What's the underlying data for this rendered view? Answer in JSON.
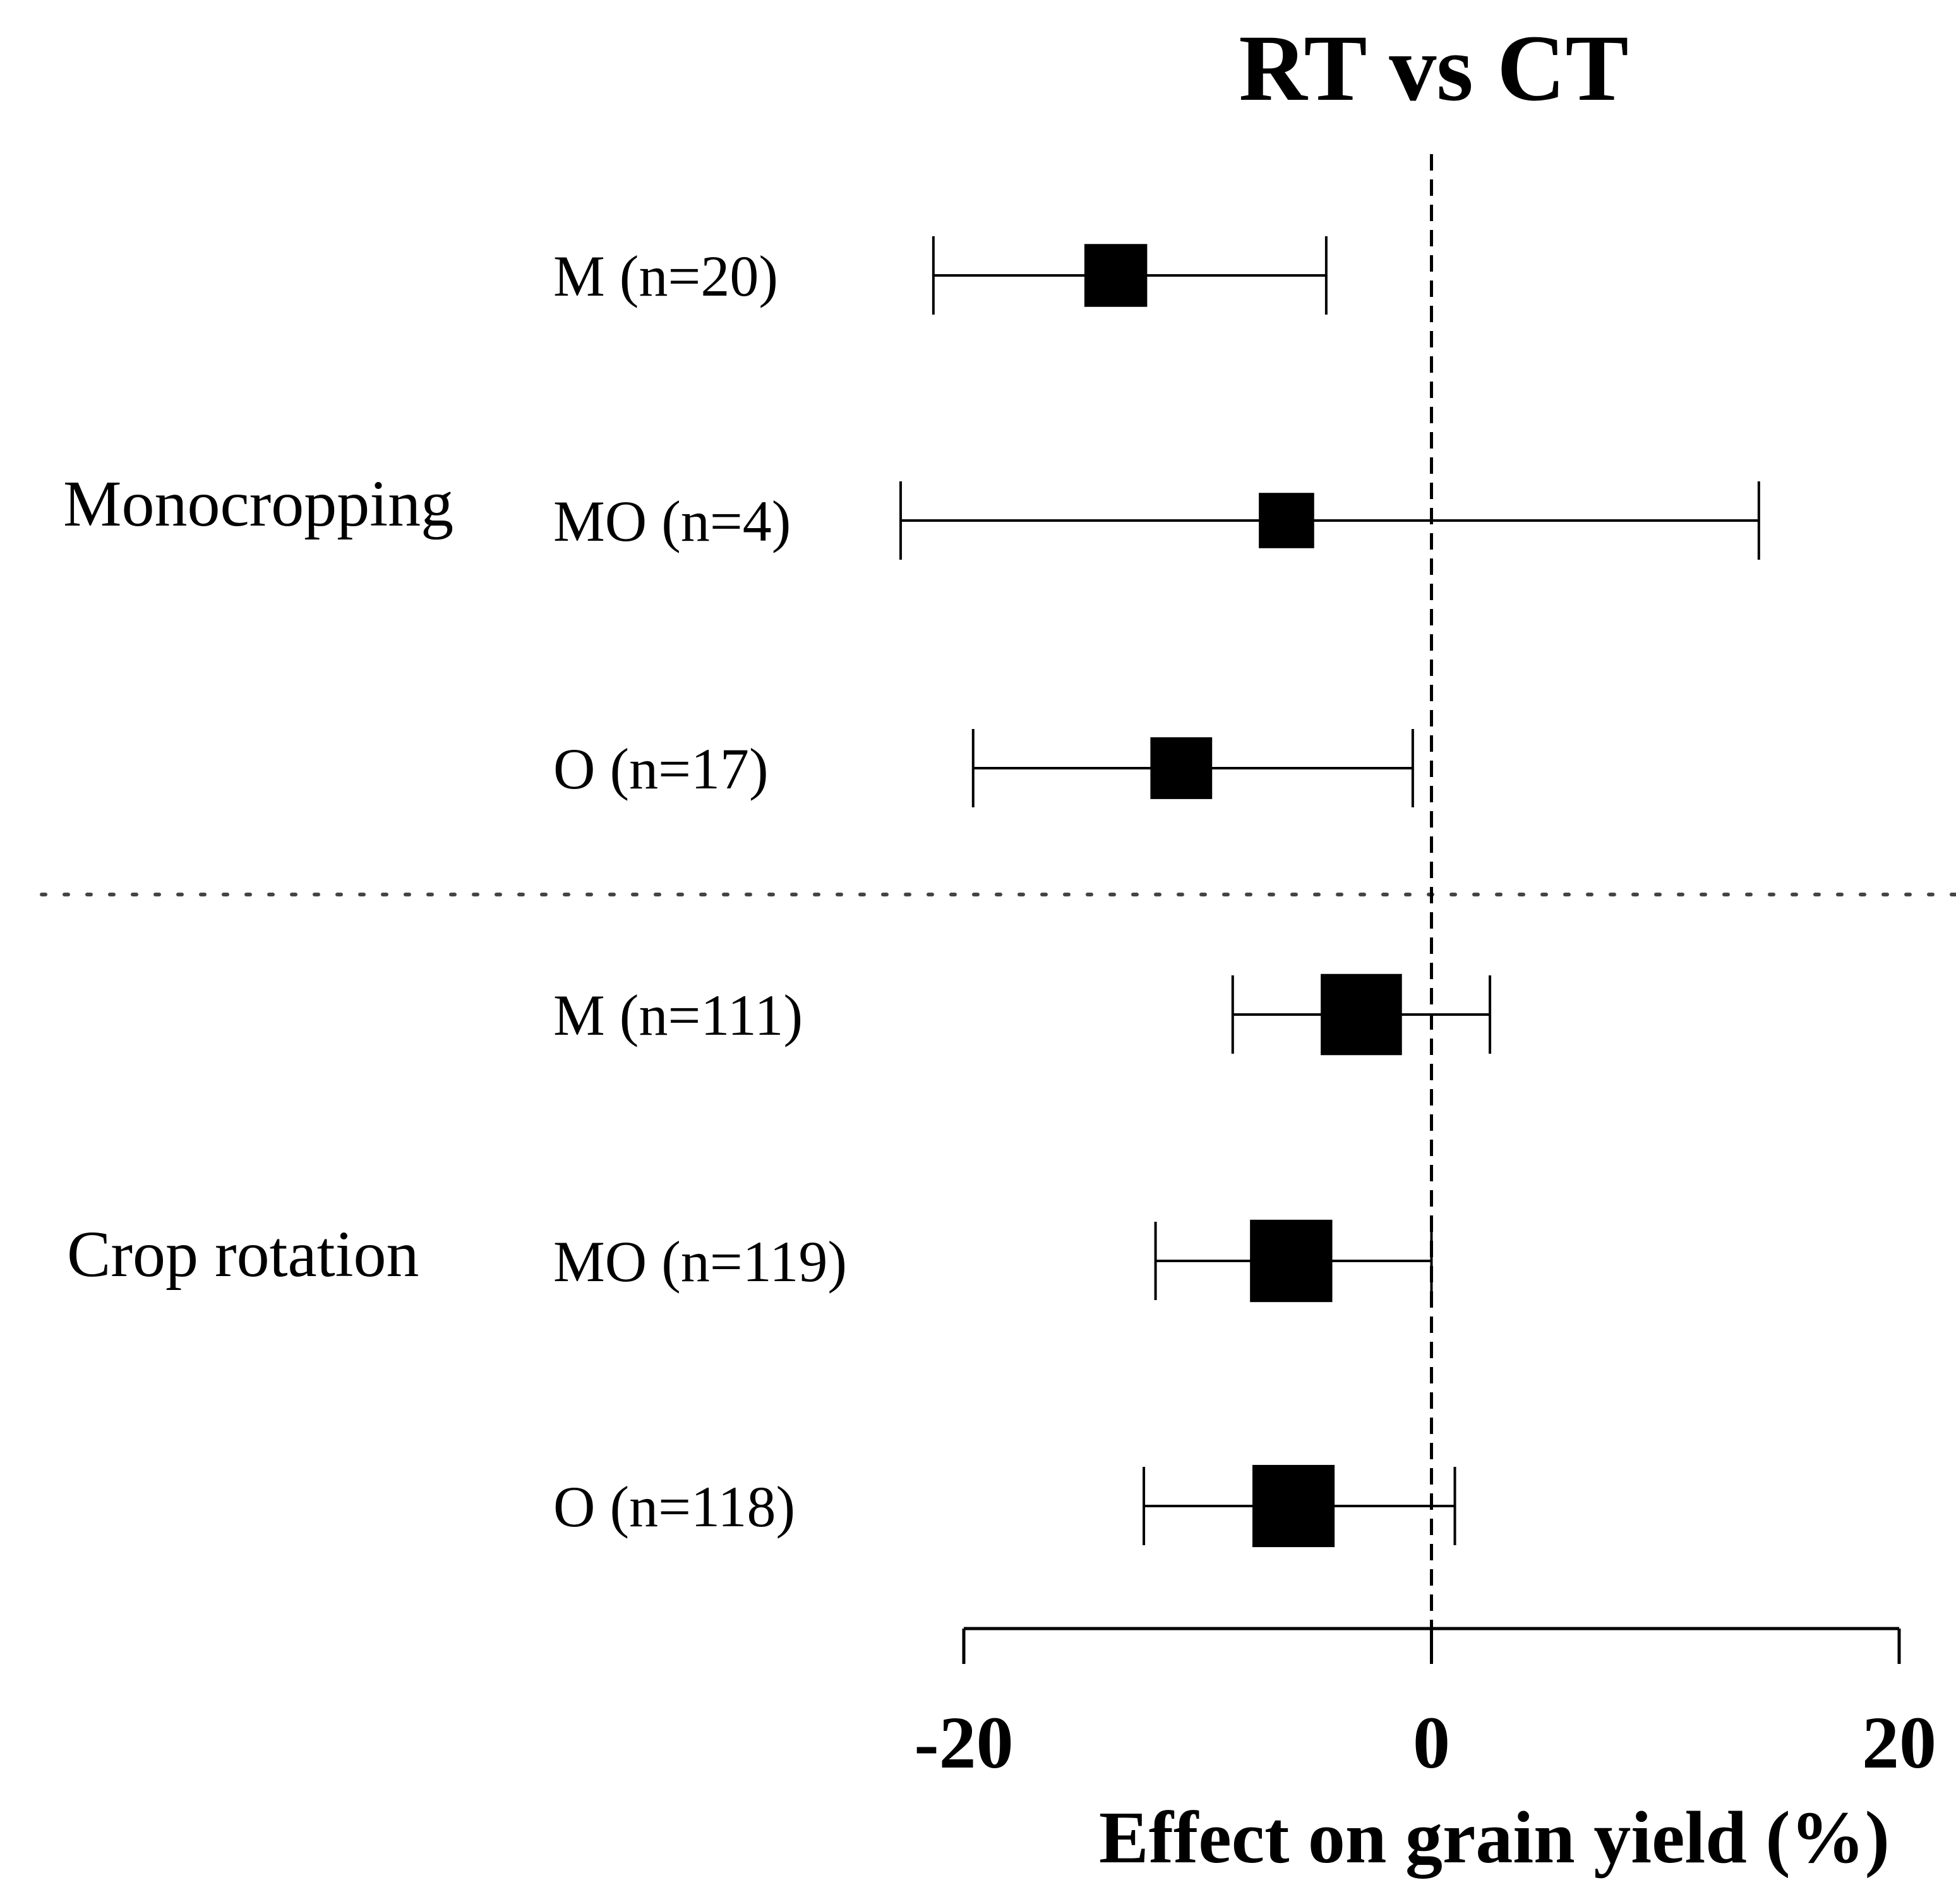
{
  "chart_data": {
    "type": "forest",
    "title": "RT vs CT",
    "xlabel": "Effect on grain yield (%)",
    "ylabel": "",
    "xlim": [
      -20,
      20
    ],
    "xticks": [
      -20,
      0,
      20
    ],
    "xtick_labels": [
      "-20",
      "0",
      "20"
    ],
    "reference_line": 0,
    "groups": [
      {
        "name": "Monocropping",
        "rows": [
          {
            "label": "M (n=20)",
            "mean": -13.5,
            "lower": -21.3,
            "upper": -4.5,
            "n": 20
          },
          {
            "label": "MO (n=4)",
            "mean": -6.2,
            "lower": -22.7,
            "upper": 14.0,
            "n": 4
          },
          {
            "label": "O (n=17)",
            "mean": -10.7,
            "lower": -19.6,
            "upper": -0.8,
            "n": 17
          }
        ]
      },
      {
        "name": "Crop rotation",
        "rows": [
          {
            "label": "M (n=111)",
            "mean": -3.0,
            "lower": -8.5,
            "upper": 2.5,
            "n": 111
          },
          {
            "label": "MO (n=119)",
            "mean": -6.0,
            "lower": -11.8,
            "upper": 0.0,
            "n": 119
          },
          {
            "label": "O (n=118)",
            "mean": -5.9,
            "lower": -12.3,
            "upper": 1.0,
            "n": 118
          }
        ]
      }
    ]
  }
}
